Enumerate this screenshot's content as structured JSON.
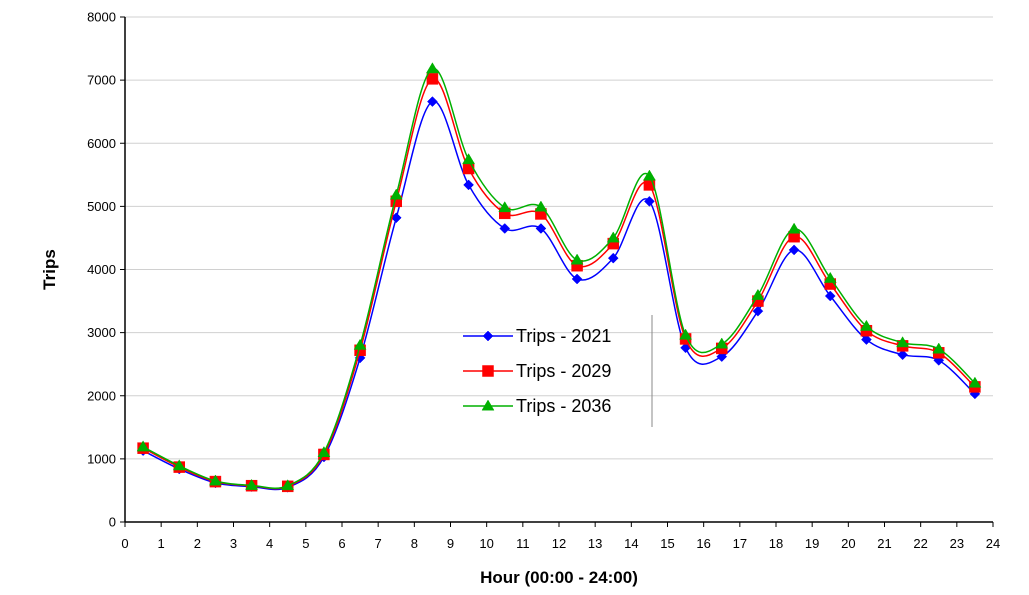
{
  "chart_data": {
    "type": "line",
    "title": "",
    "xlabel": "Hour (00:00 - 24:00)",
    "ylabel": "Trips",
    "xlim": [
      0,
      24
    ],
    "ylim": [
      0,
      8000
    ],
    "x_ticks": [
      "0",
      "1",
      "2",
      "3",
      "4",
      "5",
      "6",
      "7",
      "8",
      "9",
      "10",
      "11",
      "12",
      "13",
      "14",
      "15",
      "16",
      "17",
      "18",
      "19",
      "20",
      "21",
      "22",
      "23",
      "24"
    ],
    "y_ticks": [
      "0",
      "1000",
      "2000",
      "3000",
      "4000",
      "5000",
      "6000",
      "7000",
      "8000"
    ],
    "grid": "horizontal",
    "legend_position": "center",
    "x": [
      0.5,
      1.5,
      2.5,
      3.5,
      4.5,
      5.5,
      6.5,
      7.5,
      8.5,
      9.5,
      10.5,
      11.5,
      12.5,
      13.5,
      14.5,
      15.5,
      16.5,
      17.5,
      18.5,
      19.5,
      20.5,
      21.5,
      22.5,
      23.5
    ],
    "series": [
      {
        "name": "Trips - 2021",
        "color": "#0000ff",
        "marker": "diamond",
        "values": [
          1130,
          840,
          620,
          560,
          550,
          1030,
          2600,
          4820,
          6660,
          5340,
          4650,
          4650,
          3850,
          4180,
          5080,
          2760,
          2620,
          3340,
          4310,
          3580,
          2890,
          2650,
          2560,
          2030
        ]
      },
      {
        "name": "Trips - 2029",
        "color": "#ff0000",
        "marker": "square",
        "values": [
          1170,
          870,
          640,
          575,
          565,
          1070,
          2720,
          5080,
          7020,
          5600,
          4890,
          4880,
          4060,
          4410,
          5340,
          2900,
          2750,
          3500,
          4520,
          3770,
          3030,
          2790,
          2680,
          2140
        ]
      },
      {
        "name": "Trips - 2036",
        "color": "#00b000",
        "marker": "triangle",
        "values": [
          1190,
          890,
          650,
          580,
          575,
          1100,
          2800,
          5180,
          7180,
          5740,
          4980,
          4990,
          4150,
          4500,
          5480,
          2960,
          2820,
          3590,
          4640,
          3860,
          3100,
          2840,
          2740,
          2200
        ]
      }
    ]
  }
}
